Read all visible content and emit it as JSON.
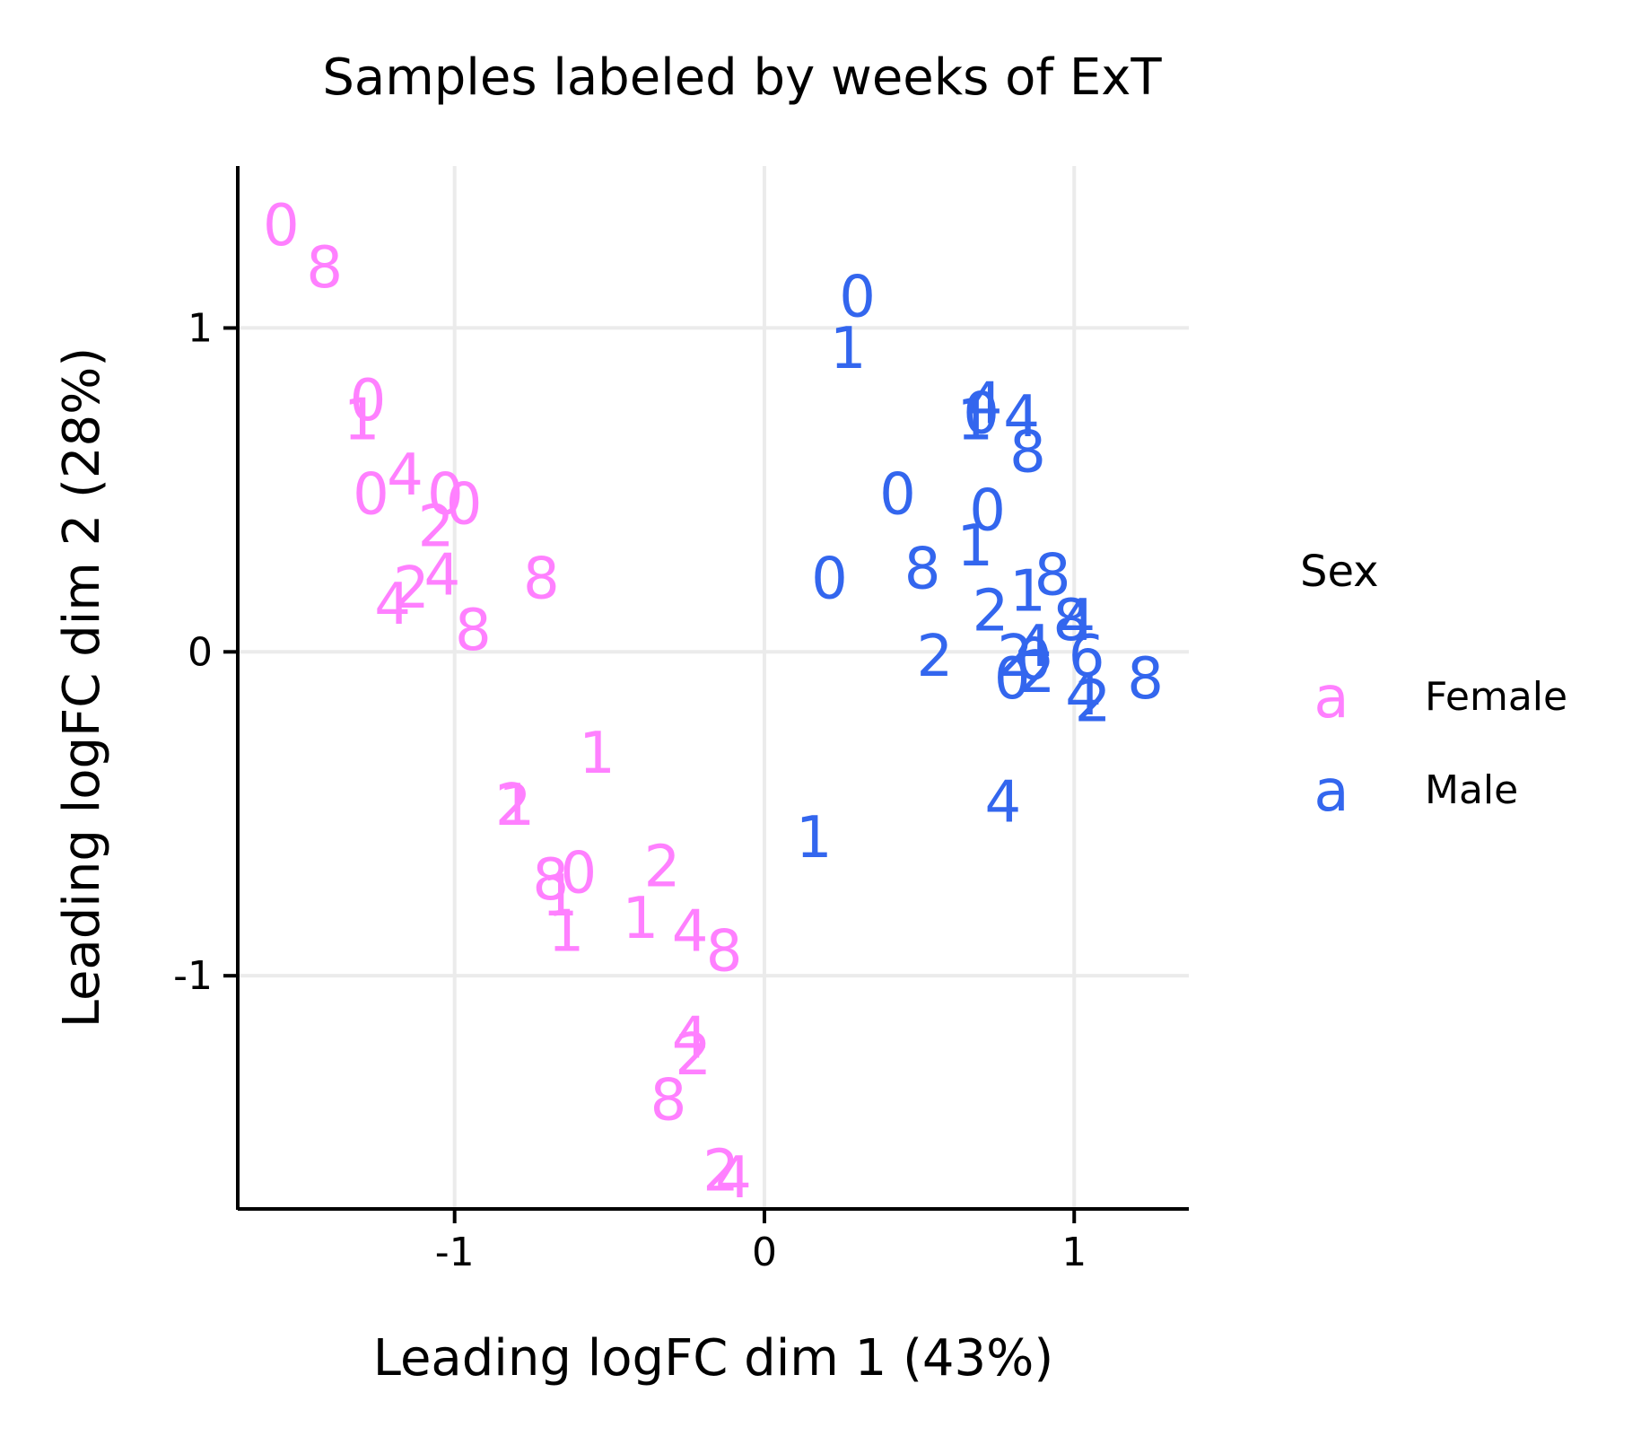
{
  "chart_data": {
    "type": "scatter",
    "title": "Samples labeled by weeks of ExT",
    "xlabel": "Leading logFC dim 1 (43%)",
    "ylabel": "Leading logFC dim 2 (28%)",
    "xlim": [
      -1.7,
      1.37
    ],
    "ylim": [
      -1.72,
      1.5
    ],
    "x_ticks": [
      -1,
      0,
      1
    ],
    "y_ticks": [
      1,
      0,
      -1
    ],
    "x_tick_labels": [
      "-1",
      "0",
      "1"
    ],
    "y_tick_labels": [
      "1",
      "0",
      "-1"
    ],
    "grid": true,
    "legend": {
      "title": "Sex",
      "placement": "right",
      "key_glyph": "a",
      "entries": [
        {
          "label": "Female",
          "color": "#FF80FF"
        },
        {
          "label": "Male",
          "color": "#3366EE"
        }
      ]
    },
    "series": [
      {
        "name": "Female",
        "color": "#FF80FF",
        "points": [
          {
            "x": -1.56,
            "y": 1.32,
            "label": "0"
          },
          {
            "x": -1.42,
            "y": 1.19,
            "label": "8"
          },
          {
            "x": -1.28,
            "y": 0.78,
            "label": "0"
          },
          {
            "x": -1.3,
            "y": 0.72,
            "label": "1"
          },
          {
            "x": -1.16,
            "y": 0.55,
            "label": "4"
          },
          {
            "x": -1.27,
            "y": 0.49,
            "label": "0"
          },
          {
            "x": -1.03,
            "y": 0.49,
            "label": "0"
          },
          {
            "x": -0.97,
            "y": 0.46,
            "label": "0"
          },
          {
            "x": -1.06,
            "y": 0.39,
            "label": "2"
          },
          {
            "x": -1.14,
            "y": 0.2,
            "label": "2"
          },
          {
            "x": -1.04,
            "y": 0.24,
            "label": "4"
          },
          {
            "x": -1.2,
            "y": 0.15,
            "label": "4"
          },
          {
            "x": -0.94,
            "y": 0.07,
            "label": "8"
          },
          {
            "x": -0.72,
            "y": 0.23,
            "label": "8"
          },
          {
            "x": -0.54,
            "y": -0.31,
            "label": "1"
          },
          {
            "x": -0.81,
            "y": -0.47,
            "label": "2"
          },
          {
            "x": -0.8,
            "y": -0.47,
            "label": "1"
          },
          {
            "x": -0.69,
            "y": -0.7,
            "label": "8"
          },
          {
            "x": -0.6,
            "y": -0.68,
            "label": "0"
          },
          {
            "x": -0.66,
            "y": -0.75,
            "label": "1"
          },
          {
            "x": -0.33,
            "y": -0.66,
            "label": "2"
          },
          {
            "x": -0.64,
            "y": -0.86,
            "label": "1"
          },
          {
            "x": -0.4,
            "y": -0.82,
            "label": "1"
          },
          {
            "x": -0.24,
            "y": -0.86,
            "label": "4"
          },
          {
            "x": -0.13,
            "y": -0.92,
            "label": "8"
          },
          {
            "x": -0.24,
            "y": -1.19,
            "label": "4"
          },
          {
            "x": -0.23,
            "y": -1.24,
            "label": "2"
          },
          {
            "x": -0.31,
            "y": -1.38,
            "label": "8"
          },
          {
            "x": -0.14,
            "y": -1.6,
            "label": "2"
          },
          {
            "x": -0.1,
            "y": -1.62,
            "label": "4"
          }
        ]
      },
      {
        "name": "Male",
        "color": "#3366EE",
        "points": [
          {
            "x": 0.3,
            "y": 1.1,
            "label": "0"
          },
          {
            "x": 0.27,
            "y": 0.94,
            "label": "1"
          },
          {
            "x": 0.71,
            "y": 0.77,
            "label": "4"
          },
          {
            "x": 0.68,
            "y": 0.72,
            "label": "1"
          },
          {
            "x": 0.7,
            "y": 0.74,
            "label": "0"
          },
          {
            "x": 0.83,
            "y": 0.73,
            "label": "4"
          },
          {
            "x": 0.85,
            "y": 0.62,
            "label": "8"
          },
          {
            "x": 0.43,
            "y": 0.49,
            "label": "0"
          },
          {
            "x": 0.72,
            "y": 0.44,
            "label": "0"
          },
          {
            "x": 0.68,
            "y": 0.33,
            "label": "1"
          },
          {
            "x": 0.51,
            "y": 0.26,
            "label": "8"
          },
          {
            "x": 0.21,
            "y": 0.23,
            "label": "0"
          },
          {
            "x": 0.85,
            "y": 0.19,
            "label": "1"
          },
          {
            "x": 0.93,
            "y": 0.24,
            "label": "8"
          },
          {
            "x": 0.73,
            "y": 0.13,
            "label": "2"
          },
          {
            "x": 0.99,
            "y": 0.1,
            "label": "8"
          },
          {
            "x": 1.01,
            "y": 0.1,
            "label": "4"
          },
          {
            "x": 0.55,
            "y": -0.01,
            "label": "2"
          },
          {
            "x": 0.81,
            "y": -0.01,
            "label": "2"
          },
          {
            "x": 0.87,
            "y": 0.02,
            "label": "4"
          },
          {
            "x": 0.87,
            "y": -0.02,
            "label": "0"
          },
          {
            "x": 0.88,
            "y": -0.06,
            "label": "2"
          },
          {
            "x": 0.8,
            "y": -0.08,
            "label": "0"
          },
          {
            "x": 1.04,
            "y": -0.01,
            "label": "6"
          },
          {
            "x": 1.23,
            "y": -0.08,
            "label": "8"
          },
          {
            "x": 1.03,
            "y": -0.13,
            "label": "4"
          },
          {
            "x": 1.06,
            "y": -0.15,
            "label": "2"
          },
          {
            "x": 0.77,
            "y": -0.46,
            "label": "4"
          },
          {
            "x": 0.16,
            "y": -0.57,
            "label": "1"
          }
        ]
      }
    ]
  }
}
